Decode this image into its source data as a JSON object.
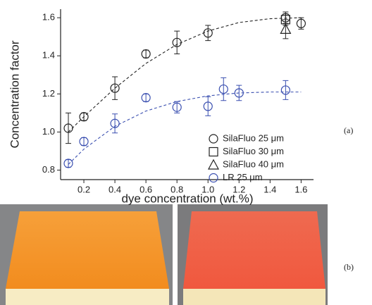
{
  "chart_data": {
    "type": "scatter",
    "xlabel": "dye concentration (wt.%)",
    "ylabel": "Concentration factor",
    "panel_labels": [
      "(a)",
      "(b)"
    ],
    "xlim": [
      0.05,
      1.68
    ],
    "ylim": [
      0.75,
      1.645
    ],
    "xticks": [
      0.2,
      0.4,
      0.6,
      0.8,
      {
        "value": 1,
        "label": "1.0"
      },
      1.2,
      1.4,
      1.6
    ],
    "yticks": [
      0.8,
      {
        "value": 1,
        "label": "1.0"
      },
      1.2,
      1.4,
      1.6
    ],
    "legend": "lower right",
    "series": [
      {
        "name": "SilaFluo 25 μm",
        "color": "#222222",
        "marker": "circle",
        "x": [
          0.1,
          0.2,
          0.4,
          0.6,
          0.8,
          1.0,
          1.5,
          1.6
        ],
        "values": [
          1.02,
          1.08,
          1.23,
          1.41,
          1.47,
          1.52,
          1.6,
          1.57
        ],
        "errors": [
          0.08,
          0.02,
          0.06,
          0.02,
          0.06,
          0.04,
          0.03,
          0.03
        ]
      },
      {
        "name": "SilaFluo 30 μm",
        "color": "#222222",
        "marker": "square",
        "x": [
          1.5
        ],
        "values": [
          1.59
        ],
        "errors": [
          0.03
        ]
      },
      {
        "name": "SilaFluo 40 μm",
        "color": "#222222",
        "marker": "triangle",
        "x": [
          1.5
        ],
        "values": [
          1.54
        ],
        "errors": [
          0.05
        ]
      },
      {
        "name": "LR 25 μm",
        "color": "#3a4fb0",
        "marker": "circle",
        "x": [
          0.1,
          0.2,
          0.4,
          0.6,
          0.8,
          1.0,
          1.1,
          1.2,
          1.5
        ],
        "values": [
          0.835,
          0.95,
          1.045,
          1.18,
          1.13,
          1.135,
          1.225,
          1.205,
          1.22
        ],
        "errors": [
          0.02,
          0.02,
          0.05,
          0.02,
          0.03,
          0.05,
          0.06,
          0.04,
          0.05
        ]
      }
    ],
    "fits": [
      {
        "color": "#222222",
        "x": [
          0.1,
          0.2,
          0.4,
          0.6,
          0.8,
          1.0,
          1.2,
          1.4,
          1.6
        ],
        "values": [
          1.0,
          1.08,
          1.23,
          1.36,
          1.46,
          1.53,
          1.575,
          1.595,
          1.6
        ]
      },
      {
        "color": "#3a4fb0",
        "x": [
          0.1,
          0.2,
          0.4,
          0.6,
          0.8,
          1.0,
          1.2,
          1.4,
          1.6
        ],
        "values": [
          0.83,
          0.91,
          1.03,
          1.11,
          1.16,
          1.19,
          1.205,
          1.21,
          1.21
        ]
      }
    ]
  }
}
